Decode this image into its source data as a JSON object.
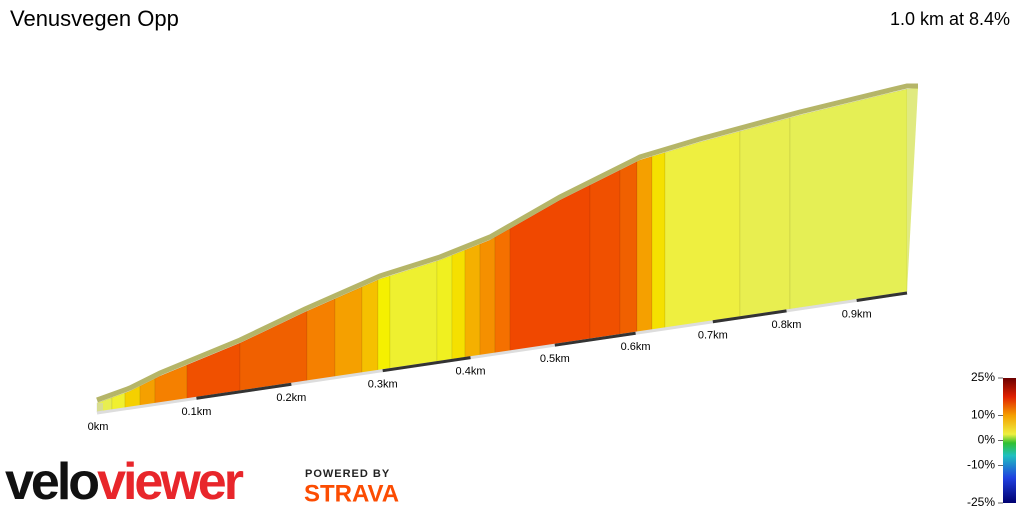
{
  "chart_data": {
    "type": "elevation-profile",
    "title": "Venusvegen Opp",
    "subtitle": "1.0 km at 8.4%",
    "xticks": [
      {
        "value": 0,
        "label": "0km"
      },
      {
        "value": 0.1,
        "label": "0.1km"
      },
      {
        "value": 0.2,
        "label": "0.2km"
      },
      {
        "value": 0.3,
        "label": "0.3km"
      },
      {
        "value": 0.4,
        "label": "0.4km"
      },
      {
        "value": 0.5,
        "label": "0.5km"
      },
      {
        "value": 0.6,
        "label": "0.6km"
      },
      {
        "value": 0.7,
        "label": "0.7km"
      },
      {
        "value": 0.8,
        "label": "0.8km"
      },
      {
        "value": 0.9,
        "label": "0.9km"
      }
    ],
    "colorbar_ticks": [
      {
        "value": 25,
        "label": "25%"
      },
      {
        "value": 10,
        "label": "10%"
      },
      {
        "value": 0,
        "label": "0%"
      },
      {
        "value": -10,
        "label": "-10%"
      },
      {
        "value": -25,
        "label": "-25%"
      }
    ]
  },
  "branding": {
    "logo_left": "velo",
    "logo_right": "viewer",
    "powered_by": "POWERED BY",
    "strava": "STRAVA"
  }
}
